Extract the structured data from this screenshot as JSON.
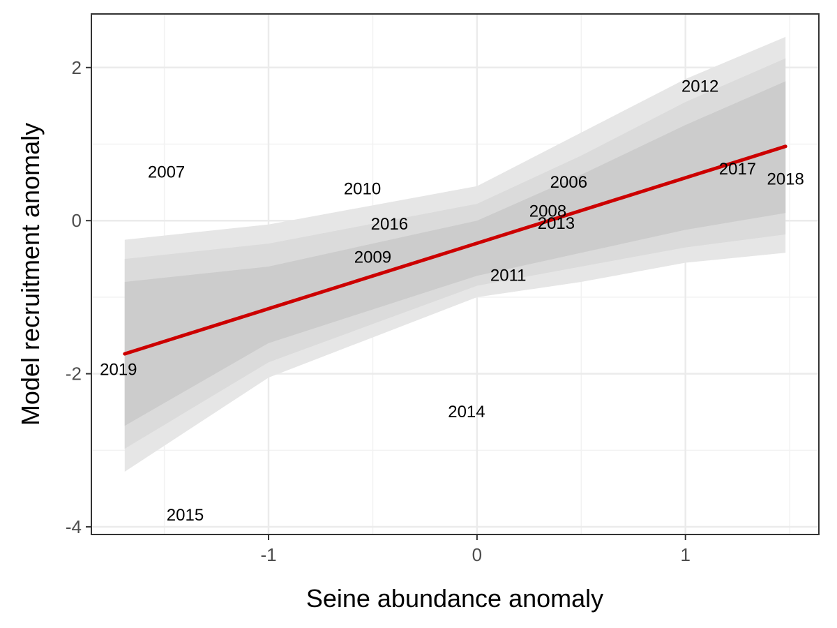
{
  "chart_data": {
    "type": "scatter",
    "title": "",
    "xlabel": "Seine abundance anomaly",
    "ylabel": "Model recruitment anomaly",
    "xlim": [
      -1.85,
      1.64
    ],
    "ylim": [
      -4.1,
      2.7
    ],
    "x_ticks": [
      -1,
      0,
      1
    ],
    "x_tick_labels": [
      "-1",
      "0",
      "1"
    ],
    "y_ticks": [
      -4,
      -2,
      0,
      2
    ],
    "y_tick_labels": [
      "-4",
      "-2",
      "0",
      "2"
    ],
    "grid": true,
    "points": [
      {
        "label": "2006",
        "x": 0.44,
        "y": 0.5
      },
      {
        "label": "2007",
        "x": -1.49,
        "y": 0.63
      },
      {
        "label": "2008",
        "x": 0.34,
        "y": 0.12
      },
      {
        "label": "2009",
        "x": -0.5,
        "y": -0.48
      },
      {
        "label": "2010",
        "x": -0.55,
        "y": 0.41
      },
      {
        "label": "2011",
        "x": 0.15,
        "y": -0.72
      },
      {
        "label": "2012",
        "x": 1.07,
        "y": 1.75
      },
      {
        "label": "2013",
        "x": 0.38,
        "y": -0.04
      },
      {
        "label": "2014",
        "x": -0.05,
        "y": -2.5
      },
      {
        "label": "2015",
        "x": -1.4,
        "y": -3.85
      },
      {
        "label": "2016",
        "x": -0.42,
        "y": -0.05
      },
      {
        "label": "2017",
        "x": 1.25,
        "y": 0.67
      },
      {
        "label": "2018",
        "x": 1.48,
        "y": 0.54
      },
      {
        "label": "2019",
        "x": -1.72,
        "y": -1.95
      }
    ],
    "fit_line": {
      "color": "#cc0000",
      "x": [
        -1.69,
        1.48
      ],
      "y": [
        -1.74,
        0.97
      ]
    },
    "bands": [
      {
        "color": "#e6e6e6",
        "x": [
          -1.69,
          -1.0,
          0.0,
          0.5,
          1.0,
          1.48
        ],
        "lower": [
          -3.28,
          -2.05,
          -1.0,
          -0.8,
          -0.55,
          -0.42
        ],
        "upper": [
          -0.25,
          -0.05,
          0.45,
          1.15,
          1.85,
          2.4
        ]
      },
      {
        "color": "#dbdbdb",
        "x": [
          -1.69,
          -1.0,
          0.0,
          0.5,
          1.0,
          1.48
        ],
        "lower": [
          -2.98,
          -1.85,
          -0.85,
          -0.6,
          -0.35,
          -0.18
        ],
        "upper": [
          -0.5,
          -0.3,
          0.22,
          0.85,
          1.55,
          2.12
        ]
      },
      {
        "color": "#cccccc",
        "x": [
          -1.69,
          -1.0,
          0.0,
          0.5,
          1.0,
          1.48
        ],
        "lower": [
          -2.68,
          -1.6,
          -0.72,
          -0.42,
          -0.12,
          0.1
        ],
        "upper": [
          -0.8,
          -0.6,
          0.0,
          0.6,
          1.25,
          1.82
        ]
      }
    ]
  }
}
